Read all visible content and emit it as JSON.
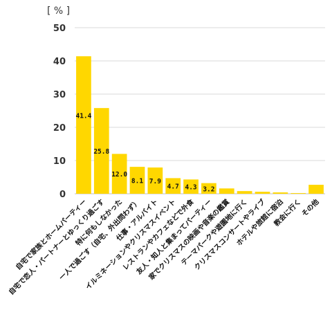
{
  "chart_data": {
    "type": "bar",
    "unit_label": "[ % ]",
    "yticks": [
      0,
      10,
      20,
      30,
      40,
      50
    ],
    "ylim": [
      0,
      50
    ],
    "bar_color": "#ffd700",
    "categories": [
      "自宅で家族とホームパーティー",
      "自宅で恋人・パートナーとゆっくり過ごす",
      "特に何もしなかった",
      "一人で過ごす（自宅、外出問わず）",
      "仕事・アルバイト",
      "イルミネーションやクリスマスイベント",
      "レストランやカフェなどで外食",
      "友人・知人と集まってパーティー",
      "家でクリスマスの映画や音楽の鑑賞",
      "テーマパークや遊園地に行く",
      "クリスマスコンサートやライブ",
      "ホテルや旅館に宿泊",
      "教会に行く",
      "その他"
    ],
    "values": [
      41.4,
      25.8,
      12.0,
      8.1,
      7.9,
      4.7,
      4.3,
      3.2,
      1.6,
      0.8,
      0.6,
      0.4,
      0.2,
      2.7
    ],
    "data_labels": [
      "41.4",
      "25.8",
      "12.0",
      "8.1",
      "7.9",
      "4.7",
      "4.3",
      "3.2",
      "",
      "",
      "",
      "",
      "",
      ""
    ],
    "grid": true
  }
}
